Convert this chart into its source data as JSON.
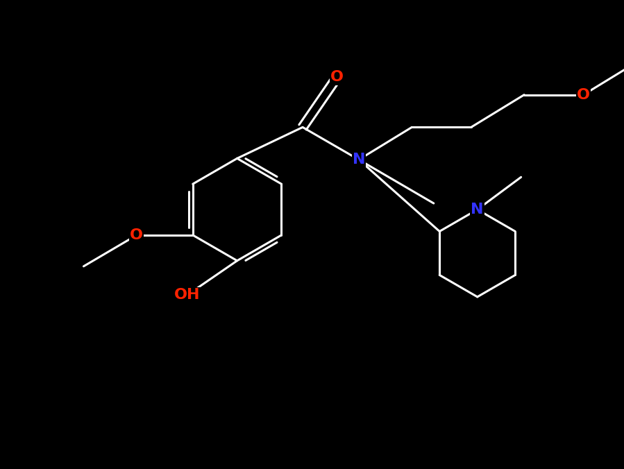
{
  "background_color": "#000000",
  "bond_color": "#ffffff",
  "bond_width": 2.2,
  "font_size": 16,
  "figsize": [
    8.99,
    6.76
  ],
  "dpi": 100,
  "xlim": [
    0,
    10
  ],
  "ylim": [
    0,
    7.5
  ],
  "colors": {
    "O": "#ff2200",
    "N": "#3333ff",
    "C": "#ffffff"
  }
}
